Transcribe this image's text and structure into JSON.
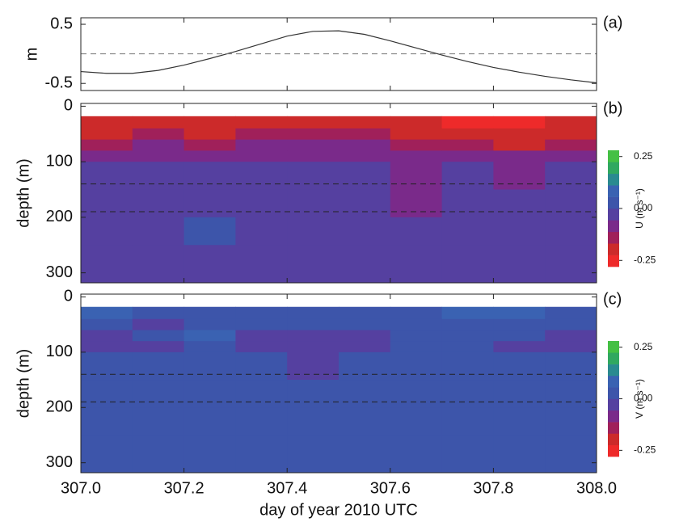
{
  "chart_data": [
    {
      "type": "line",
      "panel_label": "(a)",
      "ylabel": "m",
      "x": [
        307.0,
        307.05,
        307.1,
        307.15,
        307.2,
        307.25,
        307.3,
        307.35,
        307.4,
        307.45,
        307.5,
        307.55,
        307.6,
        307.65,
        307.7,
        307.75,
        307.8,
        307.85,
        307.9,
        307.95,
        308.0
      ],
      "values": [
        -0.3,
        -0.33,
        -0.33,
        -0.28,
        -0.19,
        -0.08,
        0.04,
        0.17,
        0.3,
        0.38,
        0.39,
        0.33,
        0.22,
        0.1,
        -0.02,
        -0.13,
        -0.23,
        -0.31,
        -0.38,
        -0.44,
        -0.49
      ],
      "color": "#333333",
      "xlim": [
        307.0,
        308.0
      ],
      "ylim": [
        -0.62,
        0.61
      ],
      "yticks": [
        0.5,
        -0.5
      ],
      "hlines": [
        0
      ]
    },
    {
      "type": "heatmap",
      "panel_label": "(b)",
      "ylabel": "depth (m)",
      "colorbar_label": "U (m s⁻¹)",
      "x_edges": [
        307.0,
        307.1,
        307.2,
        307.3,
        307.4,
        307.5,
        307.6,
        307.7,
        307.8,
        307.9,
        308.0
      ],
      "depth_edges": [
        18,
        40,
        60,
        80,
        100,
        150,
        200,
        250,
        318
      ],
      "values": [
        [
          -0.22,
          -0.2,
          -0.22,
          -0.2,
          -0.2,
          -0.2,
          -0.22,
          -0.25,
          -0.25,
          -0.22
        ],
        [
          -0.18,
          -0.15,
          -0.18,
          -0.15,
          -0.15,
          -0.15,
          -0.18,
          -0.2,
          -0.22,
          -0.2
        ],
        [
          -0.12,
          -0.1,
          -0.15,
          -0.1,
          -0.1,
          -0.1,
          -0.12,
          -0.15,
          -0.18,
          -0.15
        ],
        [
          -0.07,
          -0.07,
          -0.08,
          -0.06,
          -0.06,
          -0.06,
          -0.07,
          -0.08,
          -0.1,
          -0.08
        ],
        [
          -0.04,
          -0.03,
          -0.04,
          -0.02,
          -0.03,
          -0.03,
          -0.06,
          -0.04,
          -0.06,
          -0.04
        ],
        [
          -0.03,
          -0.02,
          -0.03,
          -0.02,
          -0.02,
          -0.03,
          -0.06,
          -0.03,
          -0.05,
          -0.03
        ],
        [
          -0.03,
          -0.02,
          0.0,
          -0.01,
          -0.02,
          -0.02,
          -0.03,
          -0.02,
          -0.05,
          -0.03
        ],
        [
          -0.03,
          -0.02,
          -0.01,
          -0.01,
          -0.01,
          -0.02,
          -0.02,
          -0.02,
          -0.03,
          -0.03
        ]
      ],
      "colormap": [
        "#ee2a2a",
        "#cc2a2a",
        "#a0205a",
        "#7a2a8a",
        "#5540a0",
        "#3d55aa",
        "#3a62b2",
        "#2a8a90",
        "#30a860",
        "#44c044"
      ],
      "clim": [
        -0.28,
        0.28
      ],
      "cticks": [
        {
          "value": 0.25,
          "label": "0.25"
        },
        {
          "value": 0,
          "label": "0.00"
        },
        {
          "value": -0.25,
          "label": "-0.25"
        }
      ],
      "ylim": [
        318,
        -5
      ],
      "yticks": [
        0,
        100,
        200,
        300
      ],
      "hlines": [
        140,
        190
      ]
    },
    {
      "type": "heatmap",
      "panel_label": "(c)",
      "ylabel": "depth (m)",
      "colorbar_label": "V (m s⁻¹)",
      "x_edges": [
        307.0,
        307.1,
        307.2,
        307.3,
        307.4,
        307.5,
        307.6,
        307.7,
        307.8,
        307.9,
        308.0
      ],
      "depth_edges": [
        18,
        40,
        60,
        80,
        100,
        150,
        200,
        250,
        318
      ],
      "values": [
        [
          0.08,
          0.0,
          0.0,
          0.0,
          0.0,
          0.0,
          0.02,
          0.06,
          0.1,
          0.05
        ],
        [
          0.0,
          -0.02,
          0.0,
          0.0,
          0.0,
          0.0,
          0.0,
          0.0,
          0.0,
          0.0
        ],
        [
          -0.02,
          0.0,
          0.1,
          -0.02,
          -0.03,
          -0.02,
          0.02,
          0.0,
          0.0,
          -0.02
        ],
        [
          -0.03,
          -0.02,
          0.0,
          -0.02,
          -0.04,
          -0.03,
          0.0,
          0.0,
          -0.02,
          -0.03
        ],
        [
          0.0,
          0.0,
          0.0,
          0.0,
          -0.02,
          0.0,
          0.0,
          0.0,
          0.0,
          0.0
        ],
        [
          0.0,
          0.0,
          0.0,
          0.02,
          0.0,
          0.0,
          0.0,
          0.0,
          0.0,
          0.0
        ],
        [
          0.0,
          0.0,
          0.0,
          0.0,
          0.0,
          0.0,
          0.03,
          0.0,
          0.0,
          0.0
        ],
        [
          0.0,
          0.0,
          0.0,
          0.0,
          0.0,
          0.0,
          0.0,
          0.0,
          0.04,
          0.0
        ]
      ],
      "colormap": [
        "#ee2a2a",
        "#cc2a2a",
        "#a0205a",
        "#7a2a8a",
        "#5540a0",
        "#3d55aa",
        "#3a62b2",
        "#2a8a90",
        "#30a860",
        "#44c044"
      ],
      "clim": [
        -0.28,
        0.28
      ],
      "cticks": [
        {
          "value": 0.25,
          "label": "0.25"
        },
        {
          "value": 0,
          "label": "0.00"
        },
        {
          "value": -0.25,
          "label": "-0.25"
        }
      ],
      "ylim": [
        318,
        -5
      ],
      "yticks": [
        0,
        100,
        200,
        300
      ],
      "hlines": [
        140,
        190
      ],
      "xlim": [
        307.0,
        308.0
      ],
      "xlabel": "day of year 2010 UTC",
      "xticks": [
        {
          "value": 307.0,
          "label": "307.0"
        },
        {
          "value": 307.2,
          "label": "307.2"
        },
        {
          "value": 307.4,
          "label": "307.4"
        },
        {
          "value": 307.6,
          "label": "307.6"
        },
        {
          "value": 307.8,
          "label": "307.8"
        },
        {
          "value": 308.0,
          "label": "308.0"
        }
      ]
    }
  ]
}
